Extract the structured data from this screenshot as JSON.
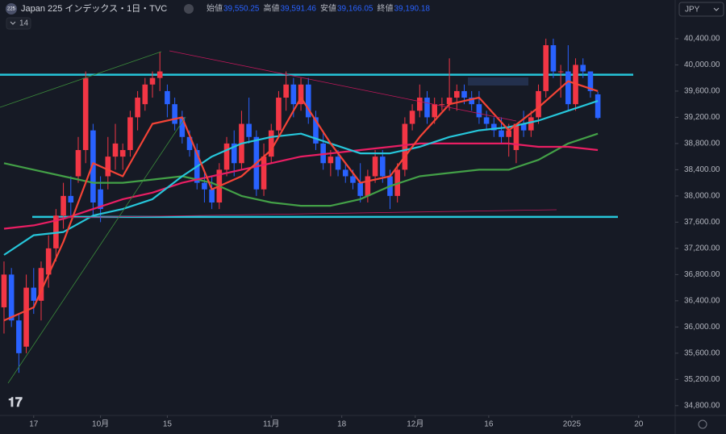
{
  "header": {
    "icon": "225",
    "symbol": "Japan 225 インデックス・1日・TVC",
    "ohlc": [
      {
        "label": "始値",
        "value": "39,550.25"
      },
      {
        "label": "高値",
        "value": "39,591.46"
      },
      {
        "label": "安値",
        "value": "39,166.05"
      },
      {
        "label": "終値",
        "value": "39,190.18"
      }
    ],
    "indicator": "14",
    "currency": "JPY"
  },
  "chart_data": {
    "type": "candlestick",
    "up_color": "#f23645",
    "down_color": "#2962ff",
    "candles": [
      [
        36300,
        37000,
        35900,
        36800
      ],
      [
        36800,
        36900,
        36000,
        36100
      ],
      [
        36100,
        36200,
        35300,
        35600
      ],
      [
        35700,
        36800,
        35600,
        36600
      ],
      [
        36600,
        36900,
        36200,
        36400
      ],
      [
        36400,
        37000,
        36100,
        36900
      ],
      [
        36800,
        37400,
        36600,
        37200
      ],
      [
        37200,
        37800,
        37000,
        37700
      ],
      [
        37700,
        38200,
        37500,
        38000
      ],
      [
        38000,
        38300,
        37700,
        37900
      ],
      [
        38300,
        38900,
        38200,
        38700
      ],
      [
        38700,
        39900,
        38500,
        39800
      ],
      [
        39000,
        39100,
        37700,
        37900
      ],
      [
        38100,
        38300,
        37600,
        37800
      ],
      [
        38300,
        38900,
        38100,
        38600
      ],
      [
        38600,
        39100,
        38400,
        38800
      ],
      [
        38600,
        38800,
        38400,
        38700
      ],
      [
        38700,
        39300,
        38600,
        39200
      ],
      [
        39200,
        39600,
        39000,
        39500
      ],
      [
        39400,
        39800,
        39300,
        39700
      ],
      [
        39700,
        39900,
        39500,
        39800
      ],
      [
        39800,
        40200,
        39600,
        39900
      ],
      [
        39600,
        39700,
        39200,
        39400
      ],
      [
        39400,
        39500,
        39000,
        39100
      ],
      [
        39200,
        39300,
        38800,
        38900
      ],
      [
        38900,
        39000,
        38600,
        38700
      ],
      [
        38700,
        38800,
        38100,
        38200
      ],
      [
        38200,
        38400,
        37900,
        38100
      ],
      [
        38100,
        38300,
        37800,
        37900
      ],
      [
        37900,
        38500,
        37800,
        38400
      ],
      [
        38400,
        38900,
        38300,
        38800
      ],
      [
        38800,
        39000,
        38300,
        38500
      ],
      [
        38500,
        39300,
        38400,
        39100
      ],
      [
        39100,
        39500,
        38800,
        38900
      ],
      [
        38900,
        39000,
        38000,
        38100
      ],
      [
        38100,
        38800,
        38000,
        38600
      ],
      [
        38600,
        39100,
        38500,
        39000
      ],
      [
        39000,
        39600,
        38900,
        39500
      ],
      [
        39500,
        39900,
        39300,
        39700
      ],
      [
        39700,
        39800,
        39200,
        39400
      ],
      [
        39400,
        39800,
        39300,
        39700
      ],
      [
        39700,
        39800,
        39100,
        39200
      ],
      [
        39200,
        39300,
        38700,
        38800
      ],
      [
        38800,
        39000,
        38400,
        38500
      ],
      [
        38500,
        38700,
        38300,
        38600
      ],
      [
        38600,
        38700,
        38300,
        38400
      ],
      [
        38400,
        38500,
        38200,
        38300
      ],
      [
        38300,
        38400,
        38100,
        38200
      ],
      [
        38200,
        38500,
        37900,
        38000
      ],
      [
        38000,
        38400,
        37900,
        38300
      ],
      [
        38300,
        38700,
        38200,
        38600
      ],
      [
        38600,
        38700,
        38200,
        38300
      ],
      [
        38300,
        38400,
        37800,
        38000
      ],
      [
        38000,
        38500,
        37900,
        38400
      ],
      [
        38400,
        39200,
        38300,
        39100
      ],
      [
        39100,
        39400,
        39000,
        39300
      ],
      [
        39300,
        39700,
        39200,
        39500
      ],
      [
        39500,
        39600,
        39100,
        39200
      ],
      [
        39200,
        39500,
        39100,
        39400
      ],
      [
        39400,
        39500,
        39300,
        39400
      ],
      [
        39400,
        40100,
        39300,
        39500
      ],
      [
        39500,
        39700,
        39300,
        39600
      ],
      [
        39600,
        39700,
        39400,
        39500
      ],
      [
        39500,
        39600,
        39300,
        39400
      ],
      [
        39400,
        39600,
        39100,
        39200
      ],
      [
        39200,
        39300,
        39000,
        39100
      ],
      [
        39100,
        39200,
        38900,
        39000
      ],
      [
        39000,
        39200,
        38800,
        38900
      ],
      [
        38900,
        39100,
        38600,
        39000
      ],
      [
        38700,
        39100,
        38500,
        39100
      ],
      [
        39100,
        39300,
        38900,
        39000
      ],
      [
        39000,
        39300,
        38900,
        39200
      ],
      [
        39200,
        39700,
        39100,
        39600
      ],
      [
        39600,
        40400,
        39500,
        40300
      ],
      [
        40300,
        40400,
        39800,
        39900
      ],
      [
        39900,
        40000,
        39500,
        39900
      ],
      [
        39900,
        40300,
        39300,
        39400
      ],
      [
        39400,
        40100,
        39300,
        40000
      ],
      [
        40000,
        40100,
        39800,
        39900
      ],
      [
        39900,
        39900,
        39500,
        39600
      ],
      [
        39550.25,
        39591.46,
        39166.05,
        39190.18
      ]
    ],
    "ma_x": [
      0,
      4,
      8,
      12,
      16,
      20,
      24,
      28,
      32,
      36,
      40,
      44,
      48,
      52,
      56,
      60,
      64,
      68,
      72,
      76,
      80
    ],
    "series": [
      {
        "color": "#43a047",
        "values": [
          38500,
          38400,
          38300,
          38200,
          38200,
          38250,
          38300,
          38200,
          38000,
          37900,
          37850,
          37850,
          37950,
          38150,
          38300,
          38350,
          38400,
          38400,
          38550,
          38800,
          38950
        ]
      },
      {
        "color": "#e91e63",
        "values": [
          37500,
          37550,
          37650,
          37800,
          37950,
          38050,
          38200,
          38300,
          38400,
          38500,
          38600,
          38650,
          38700,
          38750,
          38800,
          38800,
          38800,
          38800,
          38750,
          38750,
          38700
        ]
      },
      {
        "color": "#26c6da",
        "values": [
          37100,
          37400,
          37450,
          37700,
          37800,
          37950,
          38300,
          38600,
          38800,
          38900,
          38950,
          38800,
          38650,
          38650,
          38750,
          38900,
          39000,
          39050,
          39150,
          39300,
          39450
        ]
      },
      {
        "color": "#f44336",
        "values": [
          36100,
          36300,
          37300,
          38500,
          38300,
          39100,
          39200,
          38100,
          38300,
          38700,
          39500,
          38800,
          38200,
          38300,
          38900,
          39400,
          39500,
          39000,
          39350,
          39750,
          39600
        ]
      }
    ],
    "hlines": [
      39850,
      37680
    ],
    "hline_color": "#26c6da",
    "xlim": [
      -0.54,
      90.2
    ],
    "xticks": [
      {
        "value": 4,
        "label": "17"
      },
      {
        "value": 13,
        "label": "10月"
      },
      {
        "value": 22,
        "label": "15"
      },
      {
        "value": 36,
        "label": "11月"
      },
      {
        "value": 45.5,
        "label": "18"
      },
      {
        "value": 55.4,
        "label": "12月"
      },
      {
        "value": 65.3,
        "label": "16"
      },
      {
        "value": 76.5,
        "label": "2025"
      },
      {
        "value": 85.5,
        "label": "20"
      }
    ],
    "ylim": [
      34650,
      40990
    ],
    "yticks": [
      {
        "value": 34800,
        "label": "34,800.00"
      },
      {
        "value": 35200,
        "label": "35,200.00"
      },
      {
        "value": 35600,
        "label": "35,600.00"
      },
      {
        "value": 36000,
        "label": "36,000.00"
      },
      {
        "value": 36400,
        "label": "36,400.00"
      },
      {
        "value": 36800,
        "label": "36,800.00"
      },
      {
        "value": 37200,
        "label": "37,200.00"
      },
      {
        "value": 37600,
        "label": "37,600.00"
      },
      {
        "value": 38000,
        "label": "38,000.00"
      },
      {
        "value": 38400,
        "label": "38,400.00"
      },
      {
        "value": 38800,
        "label": "38,800.00"
      },
      {
        "value": 39200,
        "label": "39,200.00"
      },
      {
        "value": 39600,
        "label": "39,600.00"
      },
      {
        "value": 40000,
        "label": "40,000.00"
      },
      {
        "value": 40400,
        "label": "40,400.00"
      }
    ]
  }
}
